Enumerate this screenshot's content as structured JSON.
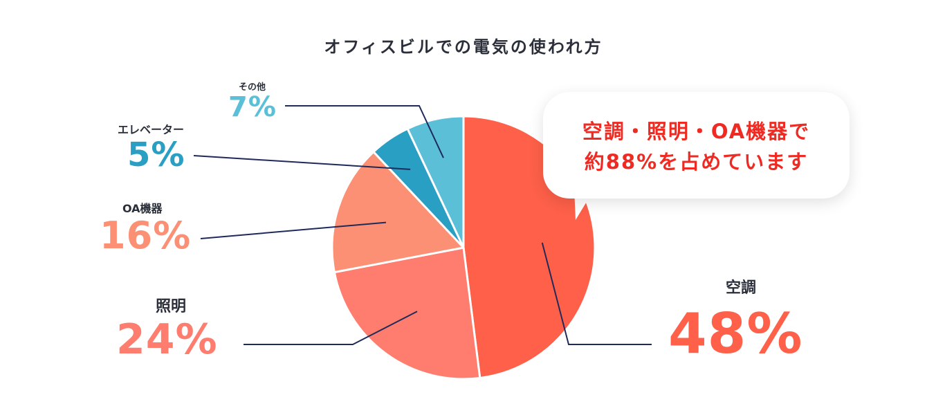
{
  "title": "オフィスビルでの電気の使われ方",
  "colors": {
    "aircon": "#fe6049",
    "lighting": "#fe7d6e",
    "oa": "#fc9074",
    "elevator": "#2a9fc4",
    "other": "#5bbfd8",
    "leader": "#1e2a5a",
    "text": "#2b2f3a"
  },
  "callout": {
    "line1": "空調・照明・OA機器で",
    "line2": "約88%を占めています"
  },
  "chart_data": {
    "type": "pie",
    "title": "オフィスビルでの電気の使われ方",
    "slices": [
      {
        "label": "空調",
        "value": 48,
        "display": "48%",
        "color": "#fe6049"
      },
      {
        "label": "照明",
        "value": 24,
        "display": "24%",
        "color": "#fe7d6e"
      },
      {
        "label": "OA機器",
        "value": 16,
        "display": "16%",
        "color": "#fc9074"
      },
      {
        "label": "エレベーター",
        "value": 5,
        "display": "5%",
        "color": "#2a9fc4"
      },
      {
        "label": "その他",
        "value": 7,
        "display": "7%",
        "color": "#5bbfd8"
      }
    ]
  }
}
